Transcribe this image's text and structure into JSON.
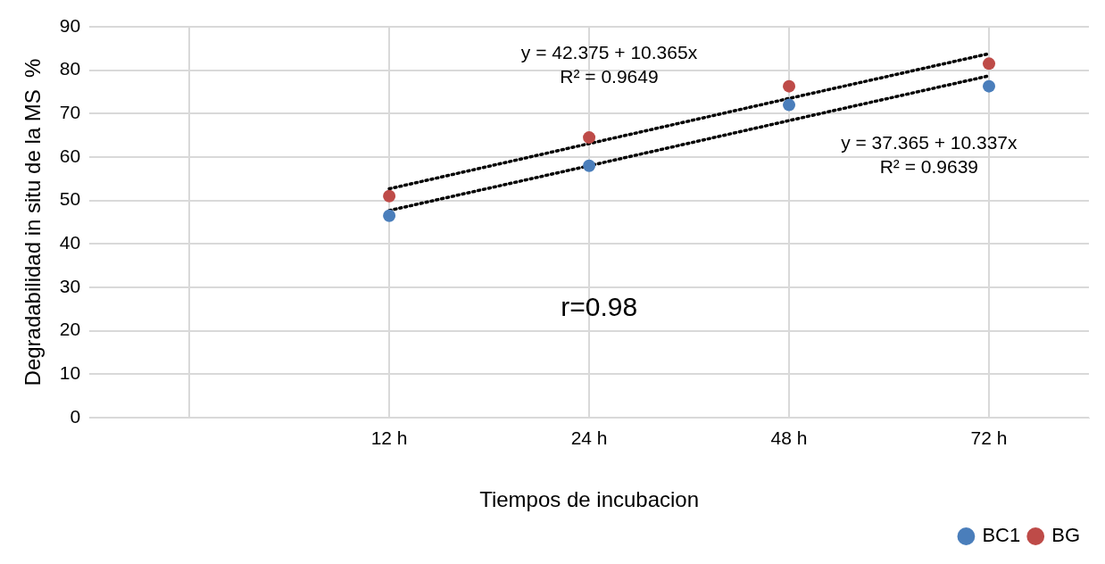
{
  "chart_data": {
    "type": "scatter",
    "xlabel": "Tiempos de incubacion",
    "ylabel": "Degradabilidad in situ de la MS  %",
    "categories": [
      null,
      "12 h",
      "24 h",
      "48 h",
      "72 h"
    ],
    "series": [
      {
        "name": "BC1",
        "color": "#4a7ebb",
        "values": [
          null,
          46.5,
          58,
          72,
          76.3
        ]
      },
      {
        "name": "BG",
        "color": "#be4b48",
        "values": [
          null,
          51,
          64.5,
          76.3,
          81.5
        ]
      },
      {
        "type": "line",
        "color": "#000000",
        "values": [
          null,
          52.7,
          63.1,
          73.5,
          83.8
        ],
        "line_style": "dotted",
        "marker": "none"
      },
      {
        "type": "line",
        "color": "#000000",
        "values": [
          null,
          47.7,
          58.0,
          68.4,
          78.7
        ],
        "line_style": "dotted",
        "marker": "none"
      }
    ],
    "ylim": [
      0,
      90
    ],
    "yticks": [
      0,
      10,
      20,
      30,
      40,
      50,
      60,
      70,
      80,
      90
    ],
    "grid": true,
    "legend": "bottom right",
    "marker": "circle",
    "annotations": [
      "y = 42.375 + 10.365x\nR² = 0.9649",
      "y = 37.365 + 10.337x\nR² = 0.9639",
      "r=0.98"
    ]
  }
}
